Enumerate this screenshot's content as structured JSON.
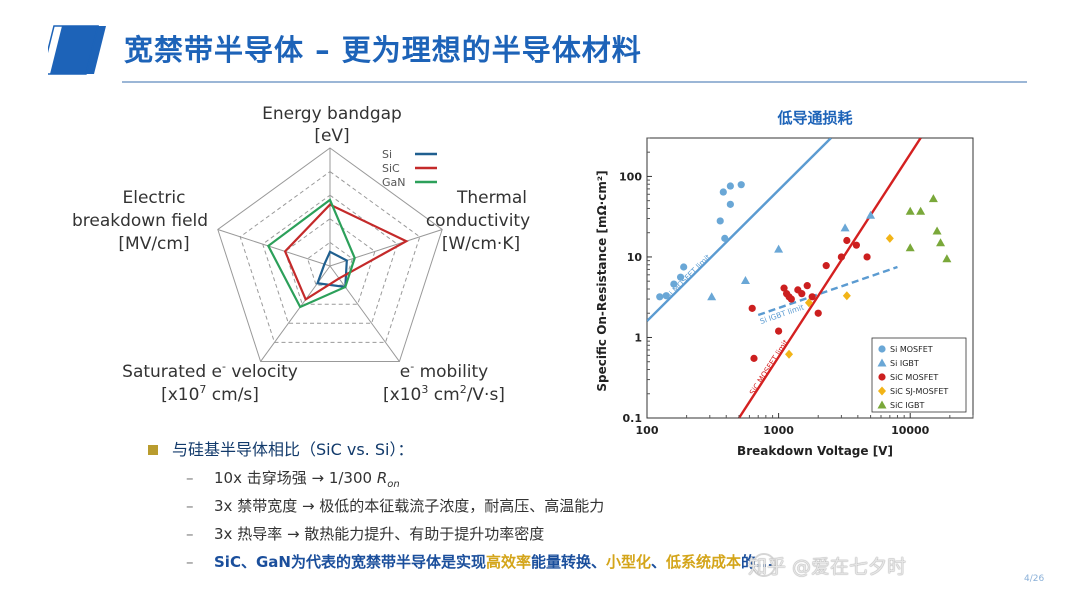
{
  "header": {
    "title": "宽禁带半导体 – 更为理想的半导体材料"
  },
  "radar": {
    "axes": [
      {
        "name": "Energy bandgap",
        "unit": "[eV]"
      },
      {
        "name": "Thermal conductivity",
        "unit": "[W/cm·K]"
      },
      {
        "name": "e⁻ mobility",
        "unit": "[x10³ cm²/V·s]"
      },
      {
        "name": "Saturated e⁻ velocity",
        "unit": "[x10⁷ cm/s]"
      },
      {
        "name": "Electric breakdown field",
        "unit": "[MV/cm]"
      }
    ],
    "axis_label_lines": {
      "bandgap_1": "Energy bandgap",
      "bandgap_2": "[eV]",
      "thermal_1": "Thermal",
      "thermal_2": "conductivity",
      "thermal_3": "[W/cm·K]",
      "mobility_1a": "e",
      "mobility_1sup": "-",
      "mobility_1b": " mobility",
      "mobility_2a": "[x10",
      "mobility_2sup": "3",
      "mobility_2b": " cm",
      "mobility_2sup2": "2",
      "mobility_2c": "/V·s]",
      "velocity_1a": "Saturated e",
      "velocity_1sup": "-",
      "velocity_1b": " velocity",
      "velocity_2a": "[x10",
      "velocity_2sup": "7",
      "velocity_2b": " cm/s]",
      "breakdown_1": "Electric",
      "breakdown_2": "breakdown field",
      "breakdown_3": "[MV/cm]"
    },
    "series": [
      {
        "name": "Si",
        "color": "#1f5f8f",
        "values": [
          0.12,
          0.15,
          0.22,
          0.18,
          0.05
        ]
      },
      {
        "name": "SiC",
        "color": "#c42a2a",
        "values": [
          0.52,
          0.68,
          0.13,
          0.35,
          0.4
        ]
      },
      {
        "name": "GaN",
        "color": "#2ca05a",
        "values": [
          0.56,
          0.22,
          0.22,
          0.43,
          0.55
        ]
      }
    ]
  },
  "chart_data": {
    "type": "scatter",
    "title": "低导通损耗",
    "xlabel": "Breakdown Voltage [V]",
    "ylabel": "Specific On-Resistance  [mΩ·cm²]",
    "x_scale": "log",
    "y_scale": "log",
    "xlim": [
      100,
      30000
    ],
    "ylim": [
      0.1,
      300
    ],
    "x_ticks": [
      "100",
      "1000",
      "10000"
    ],
    "y_ticks": [
      "0.1",
      "1",
      "10",
      "100"
    ],
    "legend_position": "bottom-right",
    "series": [
      {
        "name": "Si MOSFET",
        "color": "#6aa7d6",
        "marker": "circle",
        "points": [
          [
            125,
            3.2
          ],
          [
            140,
            3.3
          ],
          [
            160,
            4.6
          ],
          [
            180,
            5.6
          ],
          [
            190,
            7.5
          ],
          [
            360,
            28
          ],
          [
            390,
            17
          ],
          [
            380,
            64
          ],
          [
            430,
            76
          ],
          [
            430,
            45
          ],
          [
            520,
            79
          ]
        ]
      },
      {
        "name": "Si IGBT",
        "color": "#6aa7d6",
        "marker": "triangle",
        "points": [
          [
            310,
            3.2
          ],
          [
            560,
            5.1
          ],
          [
            1000,
            12.5
          ],
          [
            3200,
            23
          ],
          [
            5000,
            33
          ]
        ]
      },
      {
        "name": "SiC MOSFET",
        "color": "#cc1f1f",
        "marker": "circle",
        "points": [
          [
            650,
            0.55
          ],
          [
            630,
            2.3
          ],
          [
            1000,
            1.2
          ],
          [
            1100,
            4.1
          ],
          [
            1150,
            3.5
          ],
          [
            1200,
            3.2
          ],
          [
            1250,
            3.0
          ],
          [
            1400,
            3.9
          ],
          [
            1500,
            3.5
          ],
          [
            1650,
            4.4
          ],
          [
            1800,
            3.2
          ],
          [
            2000,
            2.0
          ],
          [
            2300,
            7.8
          ],
          [
            3000,
            10
          ],
          [
            3300,
            16
          ],
          [
            3900,
            14
          ],
          [
            4700,
            10
          ]
        ]
      },
      {
        "name": "SiC SJ-MOSFET",
        "color": "#f2b417",
        "marker": "diamond",
        "points": [
          [
            1200,
            0.62
          ],
          [
            1700,
            2.7
          ],
          [
            3300,
            3.3
          ],
          [
            7000,
            17
          ]
        ]
      },
      {
        "name": "SiC IGBT",
        "color": "#7aa83a",
        "marker": "triangle",
        "points": [
          [
            10000,
            37
          ],
          [
            12000,
            37
          ],
          [
            15000,
            53
          ],
          [
            16000,
            21
          ],
          [
            17000,
            15
          ],
          [
            19000,
            9.5
          ],
          [
            10000,
            13
          ]
        ]
      }
    ],
    "limit_lines": [
      {
        "label": "Si MOSFET limit",
        "color": "#5b9bd1",
        "style": "solid",
        "points": [
          [
            100,
            1.6
          ],
          [
            2500,
            300
          ]
        ]
      },
      {
        "label": "Si IGBT limit",
        "color": "#5b9bd1",
        "style": "dashed",
        "points": [
          [
            700,
            1.9
          ],
          [
            8000,
            7.5
          ]
        ]
      },
      {
        "label": "SiC MOSFET limit",
        "color": "#d42020",
        "style": "solid",
        "points": [
          [
            500,
            0.1
          ],
          [
            12000,
            300
          ]
        ]
      }
    ]
  },
  "bullets": {
    "heading": "与硅基半导体相比（SiC vs. Si）：",
    "dash": "–",
    "item1_a": "10x 击穿场强 → 1/300 ",
    "item1_sym": "R",
    "item1_sub": "on",
    "item2": "3x 禁带宽度 → 极低的本征载流子浓度，耐高压、高温能力",
    "item3": "3x 热导率 → 散热能力提升、有助于提升功率密度",
    "item4_a": "SiC、GaN为代表的宽禁带半导体是实现",
    "item4_b": "高效率",
    "item4_c": "能量转换、",
    "item4_d": "小型化",
    "item4_e": "、",
    "item4_f": "低系统成本",
    "item4_g": "的..."
  },
  "watermark": "知乎 @爱在七夕时",
  "page_number": "4/26",
  "colors": {
    "title": "#1d63b8",
    "bullet_marker": "#b99c2e",
    "highlight": "#d4a51a"
  }
}
